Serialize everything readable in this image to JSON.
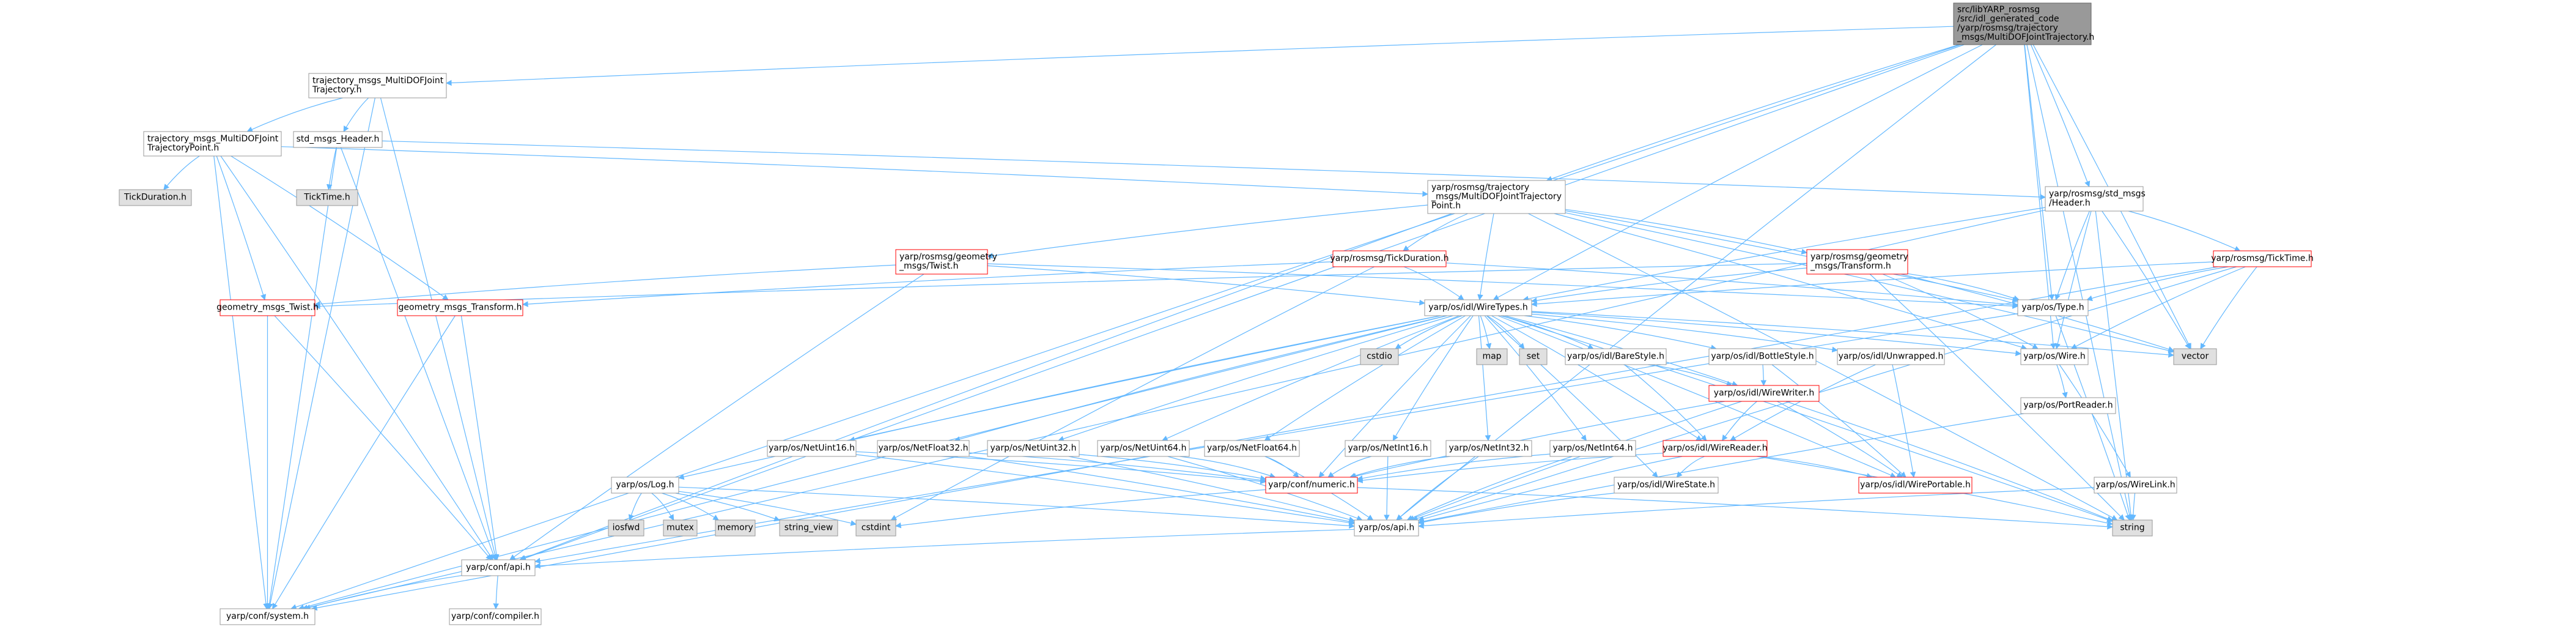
{
  "colors": {
    "edge": "#63b8ff",
    "node_fill": "#ffffff",
    "node_border": "#999999",
    "highlight_border": "#ff0000",
    "root_fill": "#999999",
    "root_border": "#666666",
    "grey_fill": "#e0e0e0"
  },
  "nodes": [
    {
      "id": "root",
      "lines": [
        "src/libYARP_rosmsg",
        "/src/idl_generated_code",
        "/yarp/rosmsg/trajectory",
        "_msgs/MultiDOFJointTrajectory.h"
      ],
      "style": "root"
    },
    {
      "id": "tm_mdjt",
      "lines": [
        "trajectory_msgs_MultiDOFJoint",
        "Trajectory.h"
      ],
      "style": "normal"
    },
    {
      "id": "tm_mdjtp",
      "lines": [
        "trajectory_msgs_MultiDOFJoint",
        "TrajectoryPoint.h"
      ],
      "style": "normal"
    },
    {
      "id": "std_hdr",
      "lines": [
        "std_msgs_Header.h"
      ],
      "style": "normal"
    },
    {
      "id": "tickdur",
      "lines": [
        "TickDuration.h"
      ],
      "style": "grey"
    },
    {
      "id": "ticktime",
      "lines": [
        "TickTime.h"
      ],
      "style": "grey"
    },
    {
      "id": "ros_mdjtp",
      "lines": [
        "yarp/rosmsg/trajectory",
        "_msgs/MultiDOFJointTrajectory",
        "Point.h"
      ],
      "style": "normal"
    },
    {
      "id": "ros_stdhdr",
      "lines": [
        "yarp/rosmsg/std_msgs",
        "/Header.h"
      ],
      "style": "normal"
    },
    {
      "id": "ros_twist",
      "lines": [
        "yarp/rosmsg/geometry",
        "_msgs/Twist.h"
      ],
      "style": "red"
    },
    {
      "id": "ros_tickdur",
      "lines": [
        "yarp/rosmsg/TickDuration.h"
      ],
      "style": "red"
    },
    {
      "id": "ros_transform",
      "lines": [
        "yarp/rosmsg/geometry",
        "_msgs/Transform.h"
      ],
      "style": "red"
    },
    {
      "id": "ros_ticktime",
      "lines": [
        "yarp/rosmsg/TickTime.h"
      ],
      "style": "red"
    },
    {
      "id": "gm_twist",
      "lines": [
        "geometry_msgs_Twist.h"
      ],
      "style": "red"
    },
    {
      "id": "gm_transform",
      "lines": [
        "geometry_msgs_Transform.h"
      ],
      "style": "red"
    },
    {
      "id": "wiretypes",
      "lines": [
        "yarp/os/idl/WireTypes.h"
      ],
      "style": "normal"
    },
    {
      "id": "ostype",
      "lines": [
        "yarp/os/Type.h"
      ],
      "style": "normal"
    },
    {
      "id": "oswire",
      "lines": [
        "yarp/os/Wire.h"
      ],
      "style": "normal"
    },
    {
      "id": "vector",
      "lines": [
        "vector"
      ],
      "style": "grey"
    },
    {
      "id": "cstdio",
      "lines": [
        "cstdio"
      ],
      "style": "grey"
    },
    {
      "id": "map",
      "lines": [
        "map"
      ],
      "style": "grey"
    },
    {
      "id": "set",
      "lines": [
        "set"
      ],
      "style": "grey"
    },
    {
      "id": "barestyle",
      "lines": [
        "yarp/os/idl/BareStyle.h"
      ],
      "style": "normal"
    },
    {
      "id": "bottlestyle",
      "lines": [
        "yarp/os/idl/BottleStyle.h"
      ],
      "style": "normal"
    },
    {
      "id": "unwrapped",
      "lines": [
        "yarp/os/idl/Unwrapped.h"
      ],
      "style": "normal"
    },
    {
      "id": "portreader",
      "lines": [
        "yarp/os/PortReader.h"
      ],
      "style": "normal"
    },
    {
      "id": "wirewriter",
      "lines": [
        "yarp/os/idl/WireWriter.h"
      ],
      "style": "red"
    },
    {
      "id": "wirereader",
      "lines": [
        "yarp/os/idl/WireReader.h"
      ],
      "style": "red"
    },
    {
      "id": "wireportable",
      "lines": [
        "yarp/os/idl/WirePortable.h"
      ],
      "style": "red"
    },
    {
      "id": "wirestate",
      "lines": [
        "yarp/os/idl/WireState.h"
      ],
      "style": "normal"
    },
    {
      "id": "wirelink",
      "lines": [
        "yarp/os/WireLink.h"
      ],
      "style": "normal"
    },
    {
      "id": "netuint16",
      "lines": [
        "yarp/os/NetUint16.h"
      ],
      "style": "normal"
    },
    {
      "id": "netfloat32",
      "lines": [
        "yarp/os/NetFloat32.h"
      ],
      "style": "normal"
    },
    {
      "id": "netuint32",
      "lines": [
        "yarp/os/NetUint32.h"
      ],
      "style": "normal"
    },
    {
      "id": "netuint64",
      "lines": [
        "yarp/os/NetUint64.h"
      ],
      "style": "normal"
    },
    {
      "id": "netfloat64",
      "lines": [
        "yarp/os/NetFloat64.h"
      ],
      "style": "normal"
    },
    {
      "id": "netint16",
      "lines": [
        "yarp/os/NetInt16.h"
      ],
      "style": "normal"
    },
    {
      "id": "netint32",
      "lines": [
        "yarp/os/NetInt32.h"
      ],
      "style": "normal"
    },
    {
      "id": "netint64",
      "lines": [
        "yarp/os/NetInt64.h"
      ],
      "style": "normal"
    },
    {
      "id": "confnumeric",
      "lines": [
        "yarp/conf/numeric.h"
      ],
      "style": "red"
    },
    {
      "id": "oslog",
      "lines": [
        "yarp/os/Log.h"
      ],
      "style": "normal"
    },
    {
      "id": "iosfwd",
      "lines": [
        "iosfwd"
      ],
      "style": "grey"
    },
    {
      "id": "mutex",
      "lines": [
        "mutex"
      ],
      "style": "grey"
    },
    {
      "id": "memory",
      "lines": [
        "memory"
      ],
      "style": "grey"
    },
    {
      "id": "string_view",
      "lines": [
        "string_view"
      ],
      "style": "grey"
    },
    {
      "id": "cstdint",
      "lines": [
        "cstdint"
      ],
      "style": "grey"
    },
    {
      "id": "osapi",
      "lines": [
        "yarp/os/api.h"
      ],
      "style": "normal"
    },
    {
      "id": "string",
      "lines": [
        "string"
      ],
      "style": "grey"
    },
    {
      "id": "confapi",
      "lines": [
        "yarp/conf/api.h"
      ],
      "style": "normal"
    },
    {
      "id": "confsystem",
      "lines": [
        "yarp/conf/system.h"
      ],
      "style": "normal"
    },
    {
      "id": "confcompiler",
      "lines": [
        "yarp/conf/compiler.h"
      ],
      "style": "normal"
    }
  ]
}
